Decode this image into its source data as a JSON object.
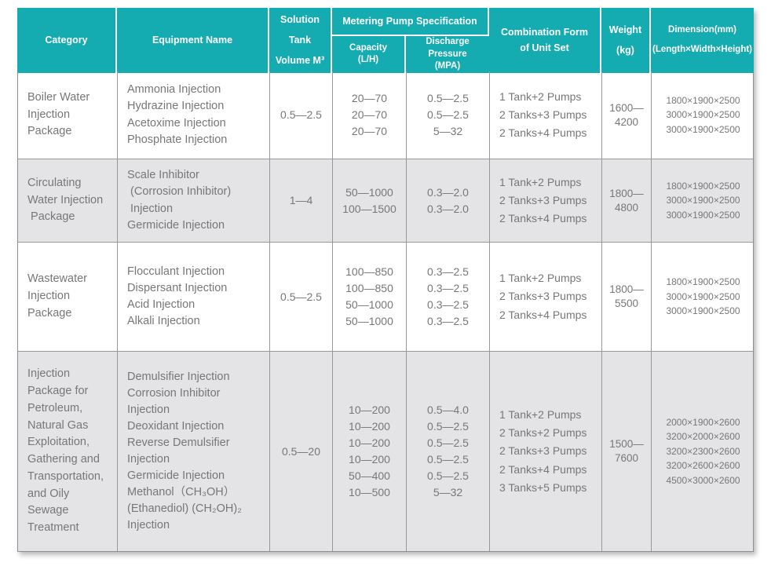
{
  "colors": {
    "header_bg": "#14abb1",
    "header_text": "#ffffff",
    "alt_row_bg": "#e4e4e6",
    "border": "#98989a",
    "body_text": "#77777a"
  },
  "header": {
    "category": "Category",
    "equipment": "Equipment Name",
    "solution_tank": [
      "Solution Tank",
      "Volume M³"
    ],
    "metering_group": "Metering Pump Specification",
    "capacity": [
      "Capacity",
      "(L/H)"
    ],
    "discharge": [
      "Discharge Pressure",
      "(MPA)"
    ],
    "combination": [
      "Combination Form",
      "of Unit Set"
    ],
    "weight": [
      "Weight",
      "(kg)"
    ],
    "dimension": [
      "Dimension(mm)",
      "(Length×Width×Height)"
    ]
  },
  "rows": [
    {
      "category": [
        "Boiler Water",
        "Injection",
        "Package"
      ],
      "equipment": [
        "Ammonia Injection",
        "Hydrazine Injection",
        "Acetoxime Injection",
        "Phosphate Injection"
      ],
      "tank_volume": "0.5—2.5",
      "capacity": [
        "20—70",
        "20—70",
        "20—70"
      ],
      "discharge": [
        "0.5—2.5",
        "0.5—2.5",
        "5—32"
      ],
      "combination": [
        "1 Tank+2 Pumps",
        "2 Tanks+3 Pumps",
        "2 Tanks+4 Pumps"
      ],
      "weight": [
        "1600—",
        "4200"
      ],
      "dimension": [
        "1800×1900×2500",
        "3000×1900×2500",
        "3000×1900×2500"
      ]
    },
    {
      "category": [
        "Circulating",
        "Water Injection",
        " Package"
      ],
      "equipment": [
        "Scale Inhibitor",
        " (Corrosion Inhibitor)",
        " Injection",
        "Germicide Injection"
      ],
      "tank_volume": "1—4",
      "capacity": [
        "50—1000",
        "100—1500"
      ],
      "discharge": [
        "0.3—2.0",
        "0.3—2.0"
      ],
      "combination": [
        "1 Tank+2 Pumps",
        "2 Tanks+3 Pumps",
        "2 Tanks+4 Pumps"
      ],
      "weight": [
        "1800—",
        "4800"
      ],
      "dimension": [
        "1800×1900×2500",
        "3000×1900×2500",
        "3000×1900×2500"
      ]
    },
    {
      "category": [
        "Wastewater",
        "Injection",
        "Package"
      ],
      "equipment": [
        "Flocculant Injection",
        "Dispersant Injection",
        "Acid Injection",
        "Alkali Injection"
      ],
      "tank_volume": "0.5—2.5",
      "capacity": [
        "100—850",
        "100—850",
        "50—1000",
        "50—1000"
      ],
      "discharge": [
        "0.3—2.5",
        "0.3—2.5",
        "0.3—2.5",
        "0.3—2.5"
      ],
      "combination": [
        "1 Tank+2 Pumps",
        "2 Tanks+3 Pumps",
        "2 Tanks+4 Pumps"
      ],
      "weight": [
        "1800—",
        "5500"
      ],
      "dimension": [
        "1800×1900×2500",
        "3000×1900×2500",
        "3000×1900×2500"
      ]
    },
    {
      "category": [
        "Injection",
        "Package for",
        "Petroleum,",
        "Natural Gas",
        "Exploitation,",
        "Gathering and",
        "Transportation,",
        "and Oily",
        "Sewage",
        "Treatment"
      ],
      "equipment": [
        "Demulsifier Injection",
        "Corrosion Inhibitor",
        "Injection",
        "Deoxidant Injection",
        "Reverse Demulsifier",
        "Injection",
        "Germicide Injection",
        "Methanol（CH₃OH）",
        "(Ethanediol) (CH₂OH)₂",
        "Injection"
      ],
      "tank_volume": "0.5—20",
      "capacity": [
        "10—200",
        "10—200",
        "10—200",
        "10—200",
        "50—400",
        "10—500"
      ],
      "discharge": [
        "0.5—4.0",
        "0.5—2.5",
        "0.5—2.5",
        "0.5—2.5",
        "0.5—2.5",
        "5—32"
      ],
      "combination": [
        "1 Tank+2 Pumps",
        "2 Tanks+2 Pumps",
        "2 Tanks+3 Pumps",
        "2 Tanks+4 Pumps",
        "3 Tanks+5 Pumps"
      ],
      "weight": [
        "1500—",
        "7600"
      ],
      "dimension": [
        "2000×1900×2600",
        "3200×2000×2600",
        "3200×2300×2600",
        "3200×2600×2600",
        "4500×3000×2600"
      ]
    }
  ]
}
